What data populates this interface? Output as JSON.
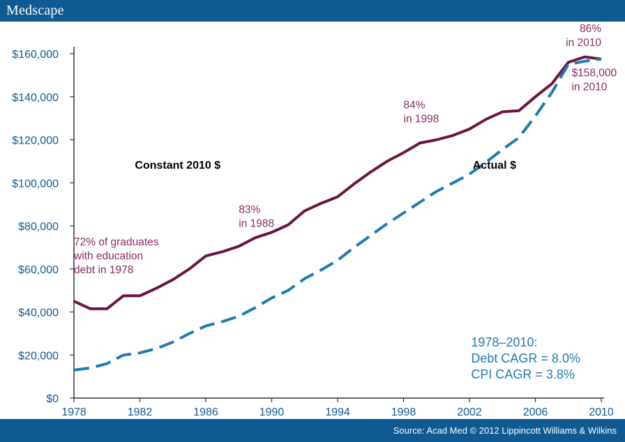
{
  "header": {
    "brand": "Medscape"
  },
  "footer": {
    "source": "Source: Acad Med © 2012 Lippincott Williams & Wilkins"
  },
  "colors": {
    "header_bg": "#0f5a93",
    "series_constant": "#6b1444",
    "series_actual": "#1e7bb0",
    "annotation_purple": "#8a2a66",
    "annotation_blue": "#1e7bb0",
    "axis_text": "#0f5a93"
  },
  "chart_data": {
    "type": "line",
    "title": "",
    "xlabel": "",
    "ylabel": "",
    "xlim": [
      1978,
      2010
    ],
    "ylim": [
      0,
      160000
    ],
    "x_ticks": [
      "1978",
      "1982",
      "1986",
      "1990",
      "1994",
      "1998",
      "2002",
      "2006",
      "2010"
    ],
    "y_ticks": [
      "$0",
      "$20,000",
      "$40,000",
      "$60,000",
      "$80,000",
      "$100,000",
      "$120,000",
      "$140,000",
      "$160,000"
    ],
    "grid": false,
    "series": [
      {
        "name": "Constant 2010 $",
        "style": "solid",
        "x": [
          1978,
          1979,
          1980,
          1981,
          1982,
          1983,
          1984,
          1985,
          1986,
          1987,
          1988,
          1989,
          1990,
          1991,
          1992,
          1993,
          1994,
          1995,
          1996,
          1997,
          1998,
          1999,
          2000,
          2001,
          2002,
          2003,
          2004,
          2005,
          2006,
          2007,
          2008,
          2009,
          2010
        ],
        "values": [
          45000,
          41500,
          41500,
          47500,
          47500,
          51000,
          55000,
          60000,
          66000,
          68000,
          70500,
          74500,
          77000,
          80500,
          87000,
          90500,
          93500,
          99500,
          105000,
          110000,
          114000,
          118500,
          120000,
          122000,
          125000,
          129500,
          133000,
          133500,
          140000,
          146000,
          156000,
          158500,
          157500
        ]
      },
      {
        "name": "Actual $",
        "style": "dashed",
        "x": [
          1978,
          1979,
          1980,
          1981,
          1982,
          1983,
          1984,
          1985,
          1986,
          1987,
          1988,
          1989,
          1990,
          1991,
          1992,
          1993,
          1994,
          1995,
          1996,
          1997,
          1998,
          1999,
          2000,
          2001,
          2002,
          2003,
          2004,
          2005,
          2006,
          2007,
          2008,
          2009,
          2010
        ],
        "values": [
          13000,
          14000,
          16000,
          20000,
          21000,
          23000,
          26000,
          30000,
          33500,
          35500,
          38000,
          42000,
          46500,
          50000,
          55500,
          59500,
          64000,
          70000,
          75500,
          81000,
          86000,
          91000,
          96000,
          100000,
          104000,
          109500,
          115500,
          121000,
          131000,
          142000,
          155000,
          156500,
          157500
        ]
      }
    ],
    "annotations": [
      {
        "text": [
          "72% of graduates",
          "with education",
          "debt in 1978"
        ],
        "year": 1978,
        "value": 71000,
        "anchor": "start",
        "color": "purple"
      },
      {
        "text": [
          "83%",
          "in 1988"
        ],
        "year": 1988,
        "value": 86000,
        "anchor": "start",
        "color": "purple"
      },
      {
        "text": [
          "84%",
          "in 1998"
        ],
        "year": 1998,
        "value": 134500,
        "anchor": "start",
        "color": "purple"
      },
      {
        "text": [
          "86%",
          "in 2010"
        ],
        "year": 2010,
        "value": 170000,
        "anchor": "end",
        "color": "purple"
      },
      {
        "text": [
          "$158,000",
          "in 2010"
        ],
        "year": 2008.2,
        "value": 149500,
        "anchor": "start",
        "color": "purple"
      },
      {
        "text": [
          "Constant 2010 $"
        ],
        "year": 1981.7,
        "value": 106500,
        "anchor": "start",
        "color": "black",
        "bold": true
      },
      {
        "text": [
          "Actual $"
        ],
        "year": 2002.2,
        "value": 106500,
        "anchor": "start",
        "color": "black",
        "bold": true
      },
      {
        "text": [
          "1978–2010:",
          "Debt CAGR = 8.0%",
          "CPI CAGR = 3.8%"
        ],
        "year": 2002.1,
        "value": 24000,
        "anchor": "start",
        "color": "blue"
      }
    ]
  }
}
